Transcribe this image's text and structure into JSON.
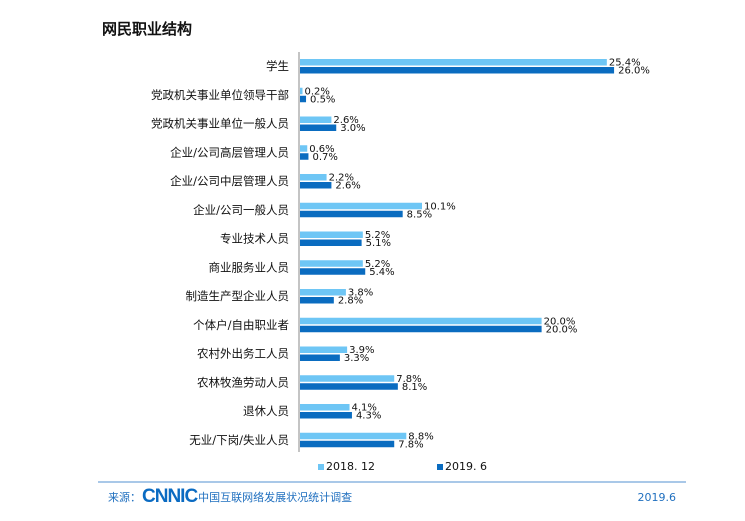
{
  "chart_data": {
    "type": "bar",
    "orientation": "horizontal",
    "title": "网民职业结构",
    "categories": [
      "学生",
      "党政机关事业单位领导干部",
      "党政机关事业单位一般人员",
      "企业/公司高层管理人员",
      "企业/公司中层管理人员",
      "企业/公司一般人员",
      "专业技术人员",
      "商业服务业人员",
      "制造生产型企业人员",
      "个体户/自由职业者",
      "农村外出务工人员",
      "农林牧渔劳动人员",
      "退休人员",
      "无业/下岗/失业人员"
    ],
    "series": [
      {
        "name": "2018. 12",
        "color": "#6ec6f5",
        "values": [
          25.4,
          0.2,
          2.6,
          0.6,
          2.2,
          10.1,
          5.2,
          5.2,
          3.8,
          20.0,
          3.9,
          7.8,
          4.1,
          8.8
        ]
      },
      {
        "name": "2019. 6",
        "color": "#0a6cc0",
        "values": [
          26.0,
          0.5,
          3.0,
          0.7,
          2.6,
          8.5,
          5.1,
          5.4,
          2.8,
          20.0,
          3.3,
          8.1,
          4.3,
          7.8
        ]
      }
    ],
    "unit": "%",
    "legend": "bottom"
  },
  "footer": {
    "source_label": "来源：",
    "logo": "CNNIC",
    "source_text": "中国互联网络发展状况统计调查",
    "date": "2019.6"
  }
}
